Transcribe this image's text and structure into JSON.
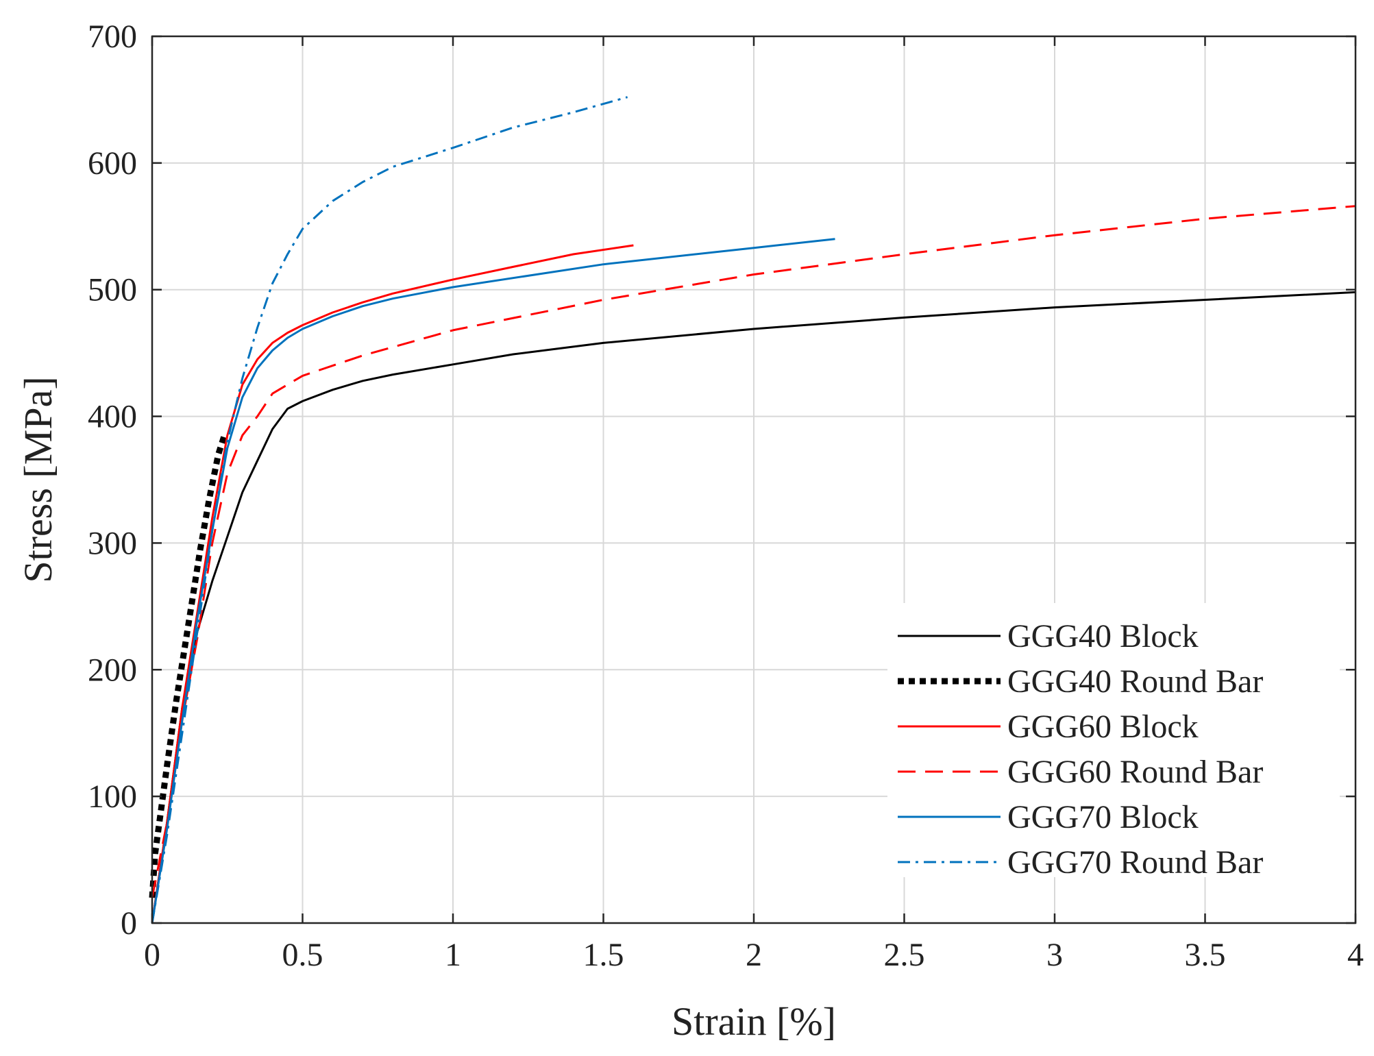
{
  "chart_data": {
    "type": "line",
    "title": "",
    "xlabel": "Strain [%]",
    "ylabel": "Stress [MPa]",
    "xlim": [
      0,
      4
    ],
    "ylim": [
      0,
      700
    ],
    "xticks": [
      0,
      0.5,
      1,
      1.5,
      2,
      2.5,
      3,
      3.5,
      4
    ],
    "xtick_labels": [
      "0",
      "0.5",
      "1",
      "1.5",
      "2",
      "2.5",
      "3",
      "3.5",
      "4"
    ],
    "yticks": [
      0,
      100,
      200,
      300,
      400,
      500,
      600,
      700
    ],
    "ytick_labels": [
      "0",
      "100",
      "200",
      "300",
      "400",
      "500",
      "600",
      "700"
    ],
    "grid": true,
    "legend_position": "bottom-right",
    "series": [
      {
        "name": "GGG40 Block",
        "color": "#000000",
        "style": "solid",
        "x": [
          0,
          0.05,
          0.1,
          0.15,
          0.2,
          0.25,
          0.3,
          0.35,
          0.4,
          0.45,
          0.5,
          0.6,
          0.7,
          0.8,
          1.0,
          1.2,
          1.5,
          2.0,
          2.5,
          3.0,
          3.5,
          4.0
        ],
        "y": [
          0,
          80,
          170,
          230,
          270,
          305,
          340,
          365,
          390,
          406,
          412,
          421,
          428,
          433,
          441,
          449,
          458,
          469,
          478,
          486,
          492,
          498
        ]
      },
      {
        "name": "GGG40 Round Bar",
        "color": "#000000",
        "style": "dotted-thick",
        "x": [
          0,
          0.01,
          0.03,
          0.05,
          0.08,
          0.1,
          0.13,
          0.16,
          0.19,
          0.22,
          0.24
        ],
        "y": [
          20,
          55,
          90,
          125,
          175,
          205,
          250,
          295,
          335,
          370,
          385
        ]
      },
      {
        "name": "GGG60 Block",
        "color": "#ff0000",
        "style": "solid",
        "x": [
          0,
          0.05,
          0.1,
          0.15,
          0.2,
          0.25,
          0.3,
          0.35,
          0.4,
          0.45,
          0.5,
          0.6,
          0.7,
          0.8,
          1.0,
          1.2,
          1.4,
          1.6
        ],
        "y": [
          0,
          80,
          170,
          245,
          320,
          385,
          425,
          445,
          458,
          466,
          472,
          482,
          490,
          497,
          508,
          518,
          528,
          535
        ]
      },
      {
        "name": "GGG60 Round Bar",
        "color": "#ff0000",
        "style": "dashed",
        "x": [
          0,
          0.05,
          0.1,
          0.15,
          0.2,
          0.25,
          0.3,
          0.35,
          0.4,
          0.5,
          0.7,
          1.0,
          1.5,
          2.0,
          2.5,
          3.0,
          3.5,
          4.0
        ],
        "y": [
          20,
          80,
          160,
          225,
          300,
          355,
          385,
          400,
          418,
          432,
          448,
          468,
          492,
          512,
          528,
          543,
          556,
          566
        ]
      },
      {
        "name": "GGG70 Block",
        "color": "#0072bd",
        "style": "solid",
        "x": [
          0,
          0.05,
          0.1,
          0.15,
          0.2,
          0.25,
          0.3,
          0.35,
          0.4,
          0.45,
          0.5,
          0.6,
          0.7,
          0.8,
          1.0,
          1.5,
          2.0,
          2.27
        ],
        "y": [
          0,
          75,
          160,
          240,
          310,
          375,
          415,
          438,
          452,
          462,
          469,
          479,
          487,
          493,
          502,
          520,
          533,
          540
        ]
      },
      {
        "name": "GGG70 Round Bar",
        "color": "#0072bd",
        "style": "dashdot",
        "x": [
          0,
          0.05,
          0.1,
          0.15,
          0.2,
          0.25,
          0.3,
          0.35,
          0.4,
          0.45,
          0.5,
          0.6,
          0.7,
          0.8,
          1.0,
          1.2,
          1.4,
          1.58
        ],
        "y": [
          0,
          70,
          150,
          230,
          310,
          380,
          430,
          470,
          505,
          528,
          548,
          570,
          585,
          597,
          612,
          628,
          640,
          652
        ]
      }
    ]
  }
}
